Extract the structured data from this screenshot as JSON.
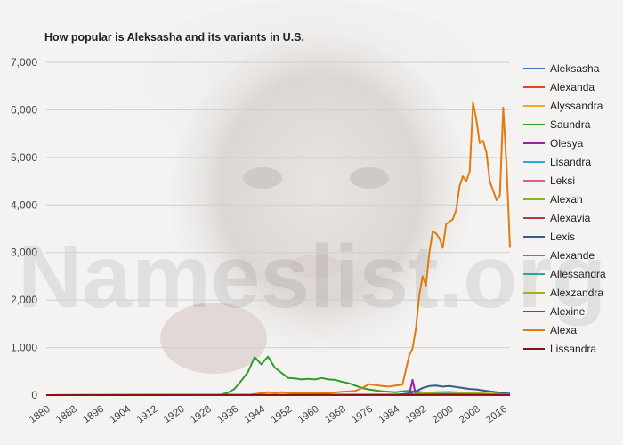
{
  "watermark": "Nameslist.org",
  "colors": {
    "Aleksasha": "#4472c4",
    "Alexanda": "#e8431a",
    "Alyssandra": "#f5a623",
    "Saundra": "#2ca02c",
    "Olesya": "#9b1fa8",
    "Lisandra": "#20b0d8",
    "Leksi": "#e05a8a",
    "Alexah": "#7cba2c",
    "Alexavia": "#b23a3a",
    "Lexis": "#2e5f8f",
    "Alexande": "#a05ab5",
    "Allessandra": "#2aa5a5",
    "Alexzandra": "#a8b01c",
    "Alexine": "#6a3db5",
    "Alexa": "#e07b12",
    "Lissandra": "#8b1010"
  },
  "chart_data": {
    "type": "line",
    "title": "How popular is Aleksasha and its variants in U.S.",
    "xlabel": "",
    "ylabel": "",
    "xlim": [
      1880,
      2018
    ],
    "ylim": [
      0,
      7000
    ],
    "yticks": [
      0,
      1000,
      2000,
      3000,
      4000,
      5000,
      6000,
      7000
    ],
    "ytick_labels": [
      "0",
      "1,000",
      "2,000",
      "3,000",
      "4,000",
      "5,000",
      "6,000",
      "7,000"
    ],
    "xticks": [
      1880,
      1888,
      1896,
      1904,
      1912,
      1920,
      1928,
      1936,
      1944,
      1952,
      1960,
      1968,
      1976,
      1984,
      1992,
      2000,
      2008,
      2016
    ],
    "grid": true,
    "legend_position": "right",
    "series": [
      {
        "name": "Aleksasha",
        "x": [
          1880,
          2018
        ],
        "y": [
          0,
          0
        ]
      },
      {
        "name": "Alexanda",
        "x": [
          1880,
          2018
        ],
        "y": [
          0,
          0
        ]
      },
      {
        "name": "Alyssandra",
        "x": [
          1880,
          1990,
          2000,
          2008,
          2018
        ],
        "y": [
          0,
          10,
          30,
          20,
          5
        ]
      },
      {
        "name": "Saundra",
        "x": [
          1880,
          1930,
          1932,
          1934,
          1936,
          1938,
          1940,
          1942,
          1944,
          1946,
          1948,
          1950,
          1952,
          1954,
          1956,
          1958,
          1960,
          1962,
          1964,
          1966,
          1968,
          1970,
          1972,
          1974,
          1976,
          1978,
          1980,
          1982,
          1984,
          1986,
          1988,
          1990,
          1995,
          2000,
          2010,
          2018
        ],
        "y": [
          0,
          0,
          10,
          50,
          130,
          300,
          480,
          800,
          650,
          810,
          580,
          470,
          360,
          350,
          330,
          340,
          330,
          360,
          330,
          320,
          280,
          250,
          200,
          150,
          120,
          100,
          80,
          70,
          60,
          80,
          90,
          70,
          40,
          20,
          10,
          5
        ]
      },
      {
        "name": "Olesya",
        "x": [
          1880,
          1988,
          1989,
          1990,
          2018
        ],
        "y": [
          0,
          0,
          320,
          0,
          0
        ]
      },
      {
        "name": "Lisandra",
        "x": [
          1880,
          1980,
          1990,
          2000,
          2010,
          2018
        ],
        "y": [
          0,
          5,
          20,
          30,
          15,
          5
        ]
      },
      {
        "name": "Leksi",
        "x": [
          1880,
          2000,
          2010,
          2018
        ],
        "y": [
          0,
          5,
          20,
          10
        ]
      },
      {
        "name": "Alexah",
        "x": [
          1880,
          1995,
          2005,
          2012,
          2018
        ],
        "y": [
          0,
          5,
          20,
          15,
          5
        ]
      },
      {
        "name": "Alexavia",
        "x": [
          1880,
          2018
        ],
        "y": [
          0,
          0
        ]
      },
      {
        "name": "Lexis",
        "x": [
          1880,
          1985,
          1988,
          1990,
          1992,
          1994,
          1996,
          1998,
          2000,
          2002,
          2004,
          2006,
          2008,
          2010,
          2012,
          2014,
          2016,
          2018
        ],
        "y": [
          0,
          10,
          40,
          80,
          150,
          190,
          200,
          180,
          190,
          170,
          150,
          130,
          120,
          100,
          80,
          60,
          40,
          30
        ]
      },
      {
        "name": "Alexande",
        "x": [
          1880,
          1975,
          1990,
          2000,
          2018
        ],
        "y": [
          0,
          5,
          15,
          10,
          5
        ]
      },
      {
        "name": "Allessandra",
        "x": [
          1880,
          1985,
          1995,
          2005,
          2018
        ],
        "y": [
          0,
          5,
          15,
          10,
          5
        ]
      },
      {
        "name": "Alexzandra",
        "x": [
          1880,
          1988,
          1992,
          1996,
          2000,
          2004,
          2008,
          2012,
          2018
        ],
        "y": [
          0,
          10,
          40,
          60,
          70,
          50,
          40,
          30,
          15
        ]
      },
      {
        "name": "Alexine",
        "x": [
          1880,
          1975,
          1985,
          2018
        ],
        "y": [
          0,
          5,
          10,
          0
        ]
      },
      {
        "name": "Alexa",
        "x": [
          1880,
          1940,
          1944,
          1946,
          1948,
          1950,
          1952,
          1955,
          1960,
          1965,
          1968,
          1970,
          1972,
          1974,
          1976,
          1978,
          1980,
          1982,
          1984,
          1986,
          1988,
          1989,
          1990,
          1991,
          1992,
          1993,
          1994,
          1995,
          1996,
          1997,
          1998,
          1999,
          2000,
          2001,
          2002,
          2003,
          2004,
          2005,
          2006,
          2007,
          2008,
          2009,
          2010,
          2011,
          2012,
          2013,
          2014,
          2015,
          2016,
          2017,
          2018
        ],
        "y": [
          0,
          5,
          40,
          60,
          50,
          60,
          50,
          40,
          40,
          50,
          70,
          80,
          90,
          150,
          230,
          210,
          190,
          180,
          200,
          220,
          830,
          980,
          1400,
          2100,
          2500,
          2300,
          3000,
          3450,
          3400,
          3300,
          3100,
          3600,
          3650,
          3700,
          3900,
          4400,
          4600,
          4500,
          4700,
          6150,
          5800,
          5300,
          5350,
          5100,
          4500,
          4300,
          4100,
          4200,
          6050,
          4800,
          3100
        ]
      },
      {
        "name": "Lissandra",
        "x": [
          1880,
          1990,
          2000,
          2018
        ],
        "y": [
          0,
          5,
          10,
          5
        ]
      }
    ]
  }
}
